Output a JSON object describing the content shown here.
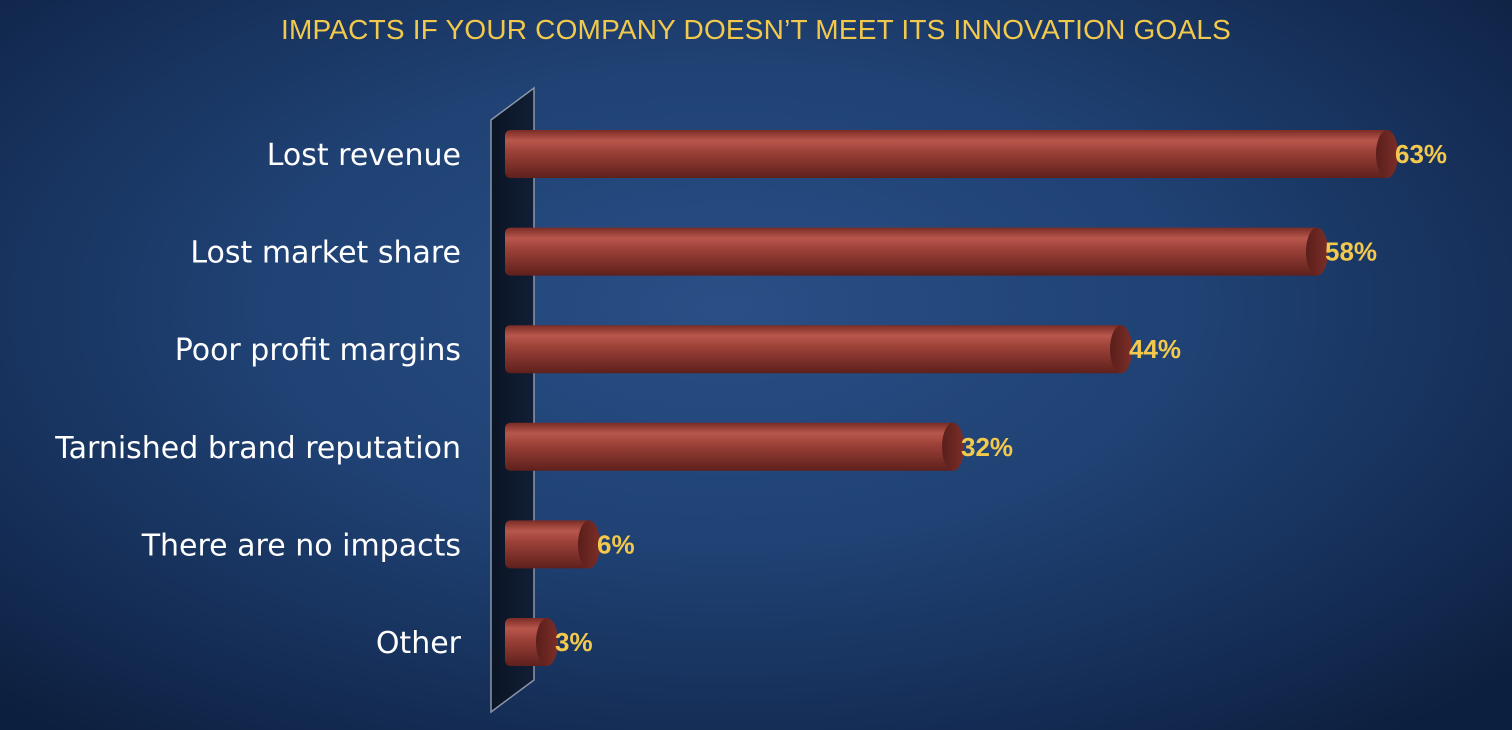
{
  "chart_data": {
    "type": "bar",
    "orientation": "horizontal",
    "title": "IMPACTS IF YOUR COMPANY DOESN’T MEET ITS INNOVATION GOALS",
    "categories": [
      "Lost revenue",
      "Lost market share",
      "Poor profit margins",
      "Tarnished brand reputation",
      "There are no impacts",
      "Other"
    ],
    "values": [
      63,
      58,
      44,
      32,
      6,
      3
    ],
    "value_labels": [
      "63%",
      "58%",
      "44%",
      "32%",
      "6%",
      "3%"
    ],
    "unit": "%",
    "xlim": [
      0,
      63
    ],
    "grid": false,
    "legend": "none",
    "colors": {
      "bar": "#9c4138",
      "bar_dark": "#6e2722",
      "bar_light": "#b8574c",
      "value_label": "#f2c94c",
      "category_label": "#ffffff",
      "title": "#f2c94c",
      "axis_wall": "#0c1628"
    }
  }
}
